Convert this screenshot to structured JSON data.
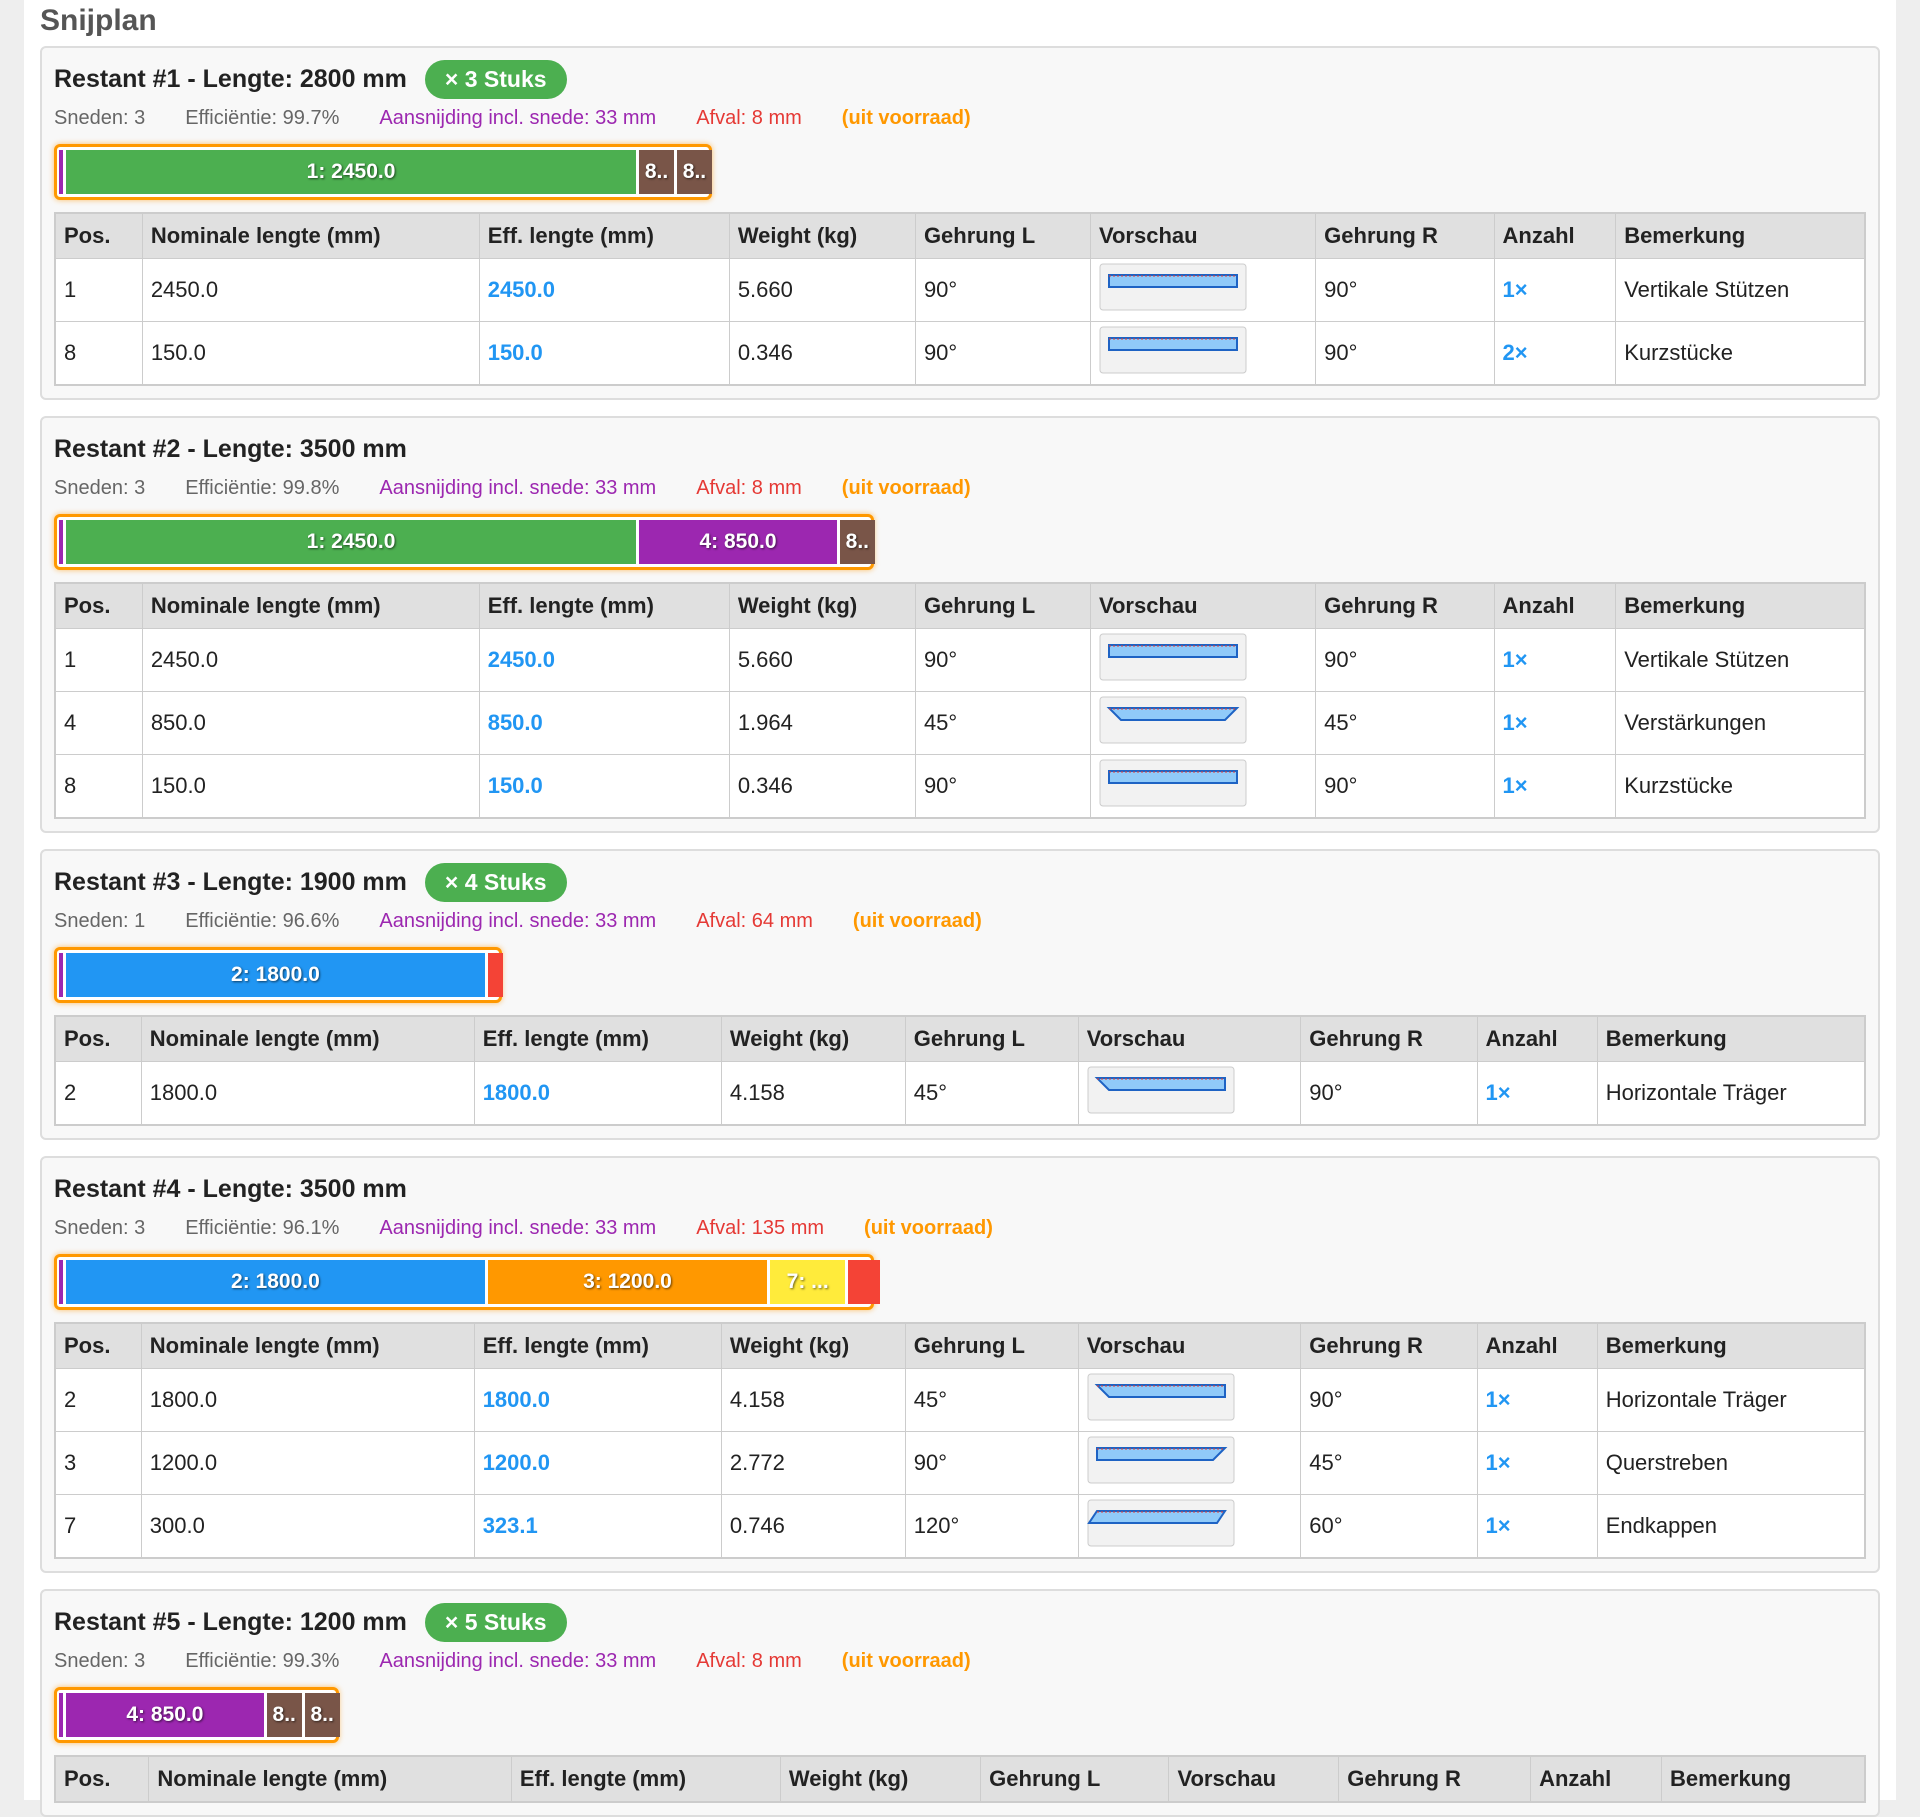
{
  "title": "Snijplan",
  "columns": [
    "Pos.",
    "Nominale lengte (mm)",
    "Eff. lengte (mm)",
    "Weight (kg)",
    "Gehrung L",
    "Vorschau",
    "Gehrung R",
    "Anzahl",
    "Bemerkung"
  ],
  "sections": [
    {
      "title": "Restant #1 - Lengte: 2800 mm",
      "badge": "× 3 Stuks",
      "stats": [
        "Sneden: 3",
        "Efficiëntie: 99.7%",
        "Aansnijding incl. snede: 33 mm",
        "Afval: 8 mm",
        "(uit voorraad)"
      ],
      "bar": {
        "length": 2800,
        "segments": [
          {
            "label": "1: 2450.0",
            "length": 2450,
            "color": "#4caf50"
          },
          {
            "label": "8..",
            "length": 150,
            "color": "#795548"
          },
          {
            "label": "8..",
            "length": 150,
            "color": "#795548"
          }
        ]
      },
      "rows": [
        {
          "pos": "1",
          "nominal": "2450.0",
          "eff": "2450.0",
          "weight": "5.660",
          "gehrung_l": "90°",
          "gehrung_r": "90°",
          "anzahl": "1×",
          "bemerkung": "Vertikale Stützen"
        },
        {
          "pos": "8",
          "nominal": "150.0",
          "eff": "150.0",
          "weight": "0.346",
          "gehrung_l": "90°",
          "gehrung_r": "90°",
          "anzahl": "2×",
          "bemerkung": "Kurzstücke"
        }
      ]
    },
    {
      "title": "Restant #2 - Lengte: 3500 mm",
      "stats": [
        "Sneden: 3",
        "Efficiëntie: 99.8%",
        "Aansnijding incl. snede: 33 mm",
        "Afval: 8 mm",
        "(uit voorraad)"
      ],
      "bar": {
        "length": 3500,
        "segments": [
          {
            "label": "1: 2450.0",
            "length": 2450,
            "color": "#4caf50"
          },
          {
            "label": "4: 850.0",
            "length": 850,
            "color": "#9c27b0"
          },
          {
            "label": "8..",
            "length": 150,
            "color": "#795548"
          }
        ]
      },
      "rows": [
        {
          "pos": "1",
          "nominal": "2450.0",
          "eff": "2450.0",
          "weight": "5.660",
          "gehrung_l": "90°",
          "gehrung_r": "90°",
          "anzahl": "1×",
          "bemerkung": "Vertikale Stützen"
        },
        {
          "pos": "4",
          "nominal": "850.0",
          "eff": "850.0",
          "weight": "1.964",
          "gehrung_l": "45°",
          "gehrung_r": "45°",
          "anzahl": "1×",
          "bemerkung": "Verstärkungen"
        },
        {
          "pos": "8",
          "nominal": "150.0",
          "eff": "150.0",
          "weight": "0.346",
          "gehrung_l": "90°",
          "gehrung_r": "90°",
          "anzahl": "1×",
          "bemerkung": "Kurzstücke"
        }
      ]
    },
    {
      "title": "Restant #3 - Lengte: 1900 mm",
      "badge": "× 4 Stuks",
      "stats": [
        "Sneden: 1",
        "Efficiëntie: 96.6%",
        "Aansnijding incl. snede: 33 mm",
        "Afval: 64 mm",
        "(uit voorraad)"
      ],
      "bar": {
        "length": 1900,
        "segments": [
          {
            "label": "2: 1800.0",
            "length": 1800,
            "color": "#2196f3"
          },
          {
            "length": 64,
            "color": "#f44336"
          }
        ]
      },
      "rows": [
        {
          "pos": "2",
          "nominal": "1800.0",
          "eff": "1800.0",
          "weight": "4.158",
          "gehrung_l": "45°",
          "gehrung_r": "90°",
          "anzahl": "1×",
          "bemerkung": "Horizontale Träger"
        }
      ]
    },
    {
      "title": "Restant #4 - Lengte: 3500 mm",
      "stats": [
        "Sneden: 3",
        "Efficiëntie: 96.1%",
        "Aansnijding incl. snede: 33 mm",
        "Afval: 135 mm",
        "(uit voorraad)"
      ],
      "bar": {
        "length": 3500,
        "segments": [
          {
            "label": "2: 1800.0",
            "length": 1800,
            "color": "#2196f3"
          },
          {
            "label": "3: 1200.0",
            "length": 1200,
            "color": "#ff9800"
          },
          {
            "label": "7: ...",
            "length": 323.1,
            "color": "#ffeb3b"
          },
          {
            "length": 135,
            "color": "#f44336"
          }
        ]
      },
      "rows": [
        {
          "pos": "2",
          "nominal": "1800.0",
          "eff": "1800.0",
          "weight": "4.158",
          "gehrung_l": "45°",
          "gehrung_r": "90°",
          "anzahl": "1×",
          "bemerkung": "Horizontale Träger"
        },
        {
          "pos": "3",
          "nominal": "1200.0",
          "eff": "1200.0",
          "weight": "2.772",
          "gehrung_l": "90°",
          "gehrung_r": "45°",
          "anzahl": "1×",
          "bemerkung": "Querstreben"
        },
        {
          "pos": "7",
          "nominal": "300.0",
          "eff": "323.1",
          "weight": "0.746",
          "gehrung_l": "120°",
          "gehrung_r": "60°",
          "anzahl": "1×",
          "bemerkung": "Endkappen"
        }
      ]
    },
    {
      "title": "Restant #5 - Lengte: 1200 mm",
      "badge": "× 5 Stuks",
      "stats": [
        "Sneden: 3",
        "Efficiëntie: 99.3%",
        "Aansnijding incl. snede: 33 mm",
        "Afval: 8 mm",
        "(uit voorraad)"
      ],
      "bar": {
        "length": 1200,
        "segments": [
          {
            "label": "4: 850.0",
            "length": 850,
            "color": "#9c27b0"
          },
          {
            "label": "8..",
            "length": 150,
            "color": "#795548"
          },
          {
            "label": "8..",
            "length": 150,
            "color": "#795548"
          }
        ]
      },
      "rows": []
    }
  ]
}
